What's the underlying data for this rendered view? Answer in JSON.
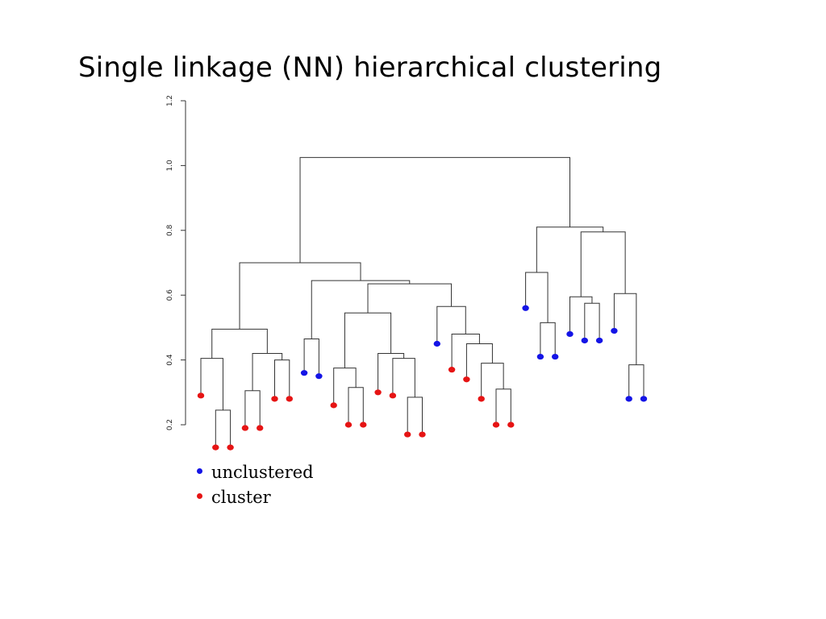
{
  "slide": {
    "title": "Single linkage (NN) hierarchical clustering"
  },
  "colors": {
    "unclustered": "#1414e6",
    "cluster": "#e61414",
    "lines": "#333333"
  },
  "legend": {
    "items": [
      {
        "label": "unclustered",
        "color": "#1414e6"
      },
      {
        "label": "cluster",
        "color": "#e61414"
      }
    ]
  },
  "chart_data": {
    "type": "dendrogram",
    "linkage": "single",
    "yaxis": {
      "ticks": [
        "0.2",
        "0.4",
        "0.6",
        "0.8",
        "1.0",
        "1.2"
      ],
      "ylim": [
        0.2,
        1.2
      ]
    },
    "grid": false,
    "legend_placement": "bottom-left",
    "leaves": [
      {
        "id": 1,
        "group": "cluster",
        "height": 0.29
      },
      {
        "id": 2,
        "group": "cluster",
        "height": 0.13
      },
      {
        "id": 3,
        "group": "cluster",
        "height": 0.13
      },
      {
        "id": 4,
        "group": "cluster",
        "height": 0.19
      },
      {
        "id": 5,
        "group": "cluster",
        "height": 0.19
      },
      {
        "id": 6,
        "group": "cluster",
        "height": 0.28
      },
      {
        "id": 7,
        "group": "cluster",
        "height": 0.28
      },
      {
        "id": 8,
        "group": "unclustered",
        "height": 0.36
      },
      {
        "id": 9,
        "group": "unclustered",
        "height": 0.35
      },
      {
        "id": 10,
        "group": "cluster",
        "height": 0.26
      },
      {
        "id": 11,
        "group": "cluster",
        "height": 0.2
      },
      {
        "id": 12,
        "group": "cluster",
        "height": 0.2
      },
      {
        "id": 13,
        "group": "cluster",
        "height": 0.3
      },
      {
        "id": 14,
        "group": "cluster",
        "height": 0.29
      },
      {
        "id": 15,
        "group": "cluster",
        "height": 0.17
      },
      {
        "id": 16,
        "group": "cluster",
        "height": 0.17
      },
      {
        "id": 17,
        "group": "unclustered",
        "height": 0.45
      },
      {
        "id": 18,
        "group": "cluster",
        "height": 0.37
      },
      {
        "id": 19,
        "group": "cluster",
        "height": 0.34
      },
      {
        "id": 20,
        "group": "cluster",
        "height": 0.28
      },
      {
        "id": 21,
        "group": "cluster",
        "height": 0.2
      },
      {
        "id": 22,
        "group": "cluster",
        "height": 0.2
      },
      {
        "id": 23,
        "group": "unclustered",
        "height": 0.56
      },
      {
        "id": 24,
        "group": "unclustered",
        "height": 0.41
      },
      {
        "id": 25,
        "group": "unclustered",
        "height": 0.41
      },
      {
        "id": 26,
        "group": "unclustered",
        "height": 0.48
      },
      {
        "id": 27,
        "group": "unclustered",
        "height": 0.46
      },
      {
        "id": 28,
        "group": "unclustered",
        "height": 0.46
      },
      {
        "id": 29,
        "group": "unclustered",
        "height": 0.49
      },
      {
        "id": 30,
        "group": "unclustered",
        "height": 0.28
      },
      {
        "id": 31,
        "group": "unclustered",
        "height": 0.28
      }
    ],
    "merges": [
      {
        "a": 2,
        "b": 3,
        "height": 0.245
      },
      {
        "a": 1,
        "b": "m1",
        "height": 0.405
      },
      {
        "a": 4,
        "b": 5,
        "height": 0.305
      },
      {
        "a": 6,
        "b": 7,
        "height": 0.4
      },
      {
        "a": "m3",
        "b": "m4",
        "height": 0.42
      },
      {
        "a": "m2",
        "b": "m5",
        "height": 0.495
      },
      {
        "a": 8,
        "b": 9,
        "height": 0.465
      },
      {
        "a": 11,
        "b": 12,
        "height": 0.315
      },
      {
        "a": 10,
        "b": "m8",
        "height": 0.375
      },
      {
        "a": 15,
        "b": 16,
        "height": 0.285
      },
      {
        "a": 14,
        "b": "m10",
        "height": 0.405
      },
      {
        "a": 13,
        "b": "m11",
        "height": 0.42
      },
      {
        "a": "m9",
        "b": "m12",
        "height": 0.545
      },
      {
        "a": 21,
        "b": 22,
        "height": 0.31
      },
      {
        "a": 20,
        "b": "m14",
        "height": 0.39
      },
      {
        "a": 19,
        "b": "m15",
        "height": 0.45
      },
      {
        "a": 18,
        "b": "m16",
        "height": 0.48
      },
      {
        "a": 17,
        "b": "m17",
        "height": 0.565
      },
      {
        "a": "m13",
        "b": "m18",
        "height": 0.635
      },
      {
        "a": "m19",
        "b": "m7",
        "height": 0.645
      },
      {
        "a": "m6",
        "b": "m20",
        "height": 0.7
      },
      {
        "a": 24,
        "b": 25,
        "height": 0.515
      },
      {
        "a": 23,
        "b": "m22",
        "height": 0.67
      },
      {
        "a": 27,
        "b": 28,
        "height": 0.575
      },
      {
        "a": 26,
        "b": "m24",
        "height": 0.595
      },
      {
        "a": 30,
        "b": 31,
        "height": 0.385
      },
      {
        "a": 29,
        "b": "m26",
        "height": 0.605
      },
      {
        "a": "m25",
        "b": "m27",
        "height": 0.795
      },
      {
        "a": "m23",
        "b": "m28",
        "height": 0.81
      },
      {
        "a": "m21",
        "b": "m29",
        "height": 1.025
      }
    ]
  }
}
